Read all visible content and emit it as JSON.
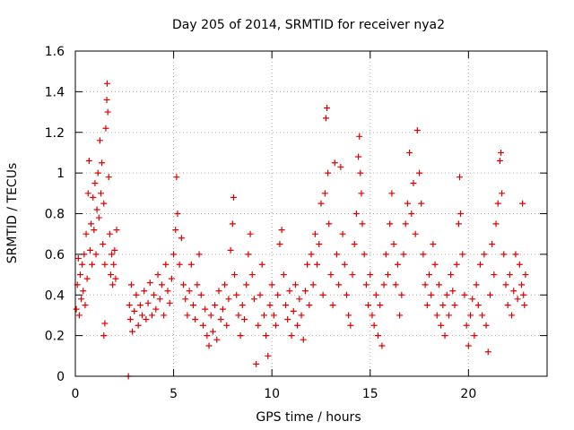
{
  "chart_data": {
    "type": "scatter",
    "title": "Day 205 of 2014, SRMTID for receiver nya2",
    "xlabel": "GPS time / hours",
    "ylabel": "SRMTID / TECUs",
    "xlim": [
      0,
      24
    ],
    "ylim": [
      0,
      1.6
    ],
    "xticks": [
      0,
      5,
      10,
      15,
      20
    ],
    "yticks": [
      0,
      0.2,
      0.4,
      0.6,
      0.8,
      1,
      1.2,
      1.4,
      1.6
    ],
    "xtick_labels": [
      "0",
      "5",
      "10",
      "15",
      "20"
    ],
    "ytick_labels": [
      "0",
      "0.2",
      "0.4",
      "0.6",
      "0.8",
      "1",
      "1.2",
      "1.4",
      "1.6"
    ],
    "grid": true,
    "legend": "none",
    "marker": "plus",
    "color": "#e00000",
    "series": [
      {
        "name": "SRMTID",
        "points": [
          [
            0.05,
            0.33
          ],
          [
            0.1,
            0.45
          ],
          [
            0.15,
            0.58
          ],
          [
            0.2,
            0.3
          ],
          [
            0.25,
            0.5
          ],
          [
            0.3,
            0.38
          ],
          [
            0.35,
            0.55
          ],
          [
            0.4,
            0.42
          ],
          [
            0.45,
            0.6
          ],
          [
            0.5,
            0.35
          ],
          [
            0.55,
            0.7
          ],
          [
            0.6,
            0.48
          ],
          [
            0.65,
            0.9
          ],
          [
            0.7,
            1.06
          ],
          [
            0.75,
            0.62
          ],
          [
            0.8,
            0.75
          ],
          [
            0.85,
            0.55
          ],
          [
            0.9,
            0.88
          ],
          [
            0.95,
            0.72
          ],
          [
            1.0,
            0.95
          ],
          [
            1.05,
            0.6
          ],
          [
            1.1,
            0.82
          ],
          [
            1.15,
            1.0
          ],
          [
            1.2,
            0.78
          ],
          [
            1.25,
            1.16
          ],
          [
            1.3,
            0.9
          ],
          [
            1.35,
            1.05
          ],
          [
            1.4,
            0.65
          ],
          [
            1.45,
            0.85
          ],
          [
            1.5,
            0.55
          ],
          [
            1.55,
            1.22
          ],
          [
            1.6,
            1.36
          ],
          [
            1.62,
            1.44
          ],
          [
            1.65,
            1.3
          ],
          [
            1.7,
            0.98
          ],
          [
            1.75,
            0.7
          ],
          [
            1.8,
            0.5
          ],
          [
            1.85,
            0.6
          ],
          [
            1.9,
            0.45
          ],
          [
            1.95,
            0.55
          ],
          [
            2.0,
            0.62
          ],
          [
            2.05,
            0.48
          ],
          [
            2.1,
            0.72
          ],
          [
            1.45,
            0.2
          ],
          [
            1.5,
            0.26
          ],
          [
            2.7,
            0.0
          ],
          [
            2.75,
            0.35
          ],
          [
            2.8,
            0.28
          ],
          [
            2.85,
            0.45
          ],
          [
            2.9,
            0.22
          ],
          [
            3.0,
            0.32
          ],
          [
            3.1,
            0.4
          ],
          [
            3.2,
            0.25
          ],
          [
            3.3,
            0.35
          ],
          [
            3.4,
            0.3
          ],
          [
            3.5,
            0.42
          ],
          [
            3.6,
            0.28
          ],
          [
            3.7,
            0.36
          ],
          [
            3.8,
            0.46
          ],
          [
            3.9,
            0.3
          ],
          [
            4.0,
            0.4
          ],
          [
            4.1,
            0.33
          ],
          [
            4.2,
            0.5
          ],
          [
            4.3,
            0.38
          ],
          [
            4.4,
            0.45
          ],
          [
            4.5,
            0.3
          ],
          [
            4.6,
            0.55
          ],
          [
            4.7,
            0.42
          ],
          [
            4.8,
            0.36
          ],
          [
            4.9,
            0.48
          ],
          [
            5.0,
            0.6
          ],
          [
            5.1,
            0.72
          ],
          [
            5.15,
            0.98
          ],
          [
            5.2,
            0.8
          ],
          [
            5.3,
            0.55
          ],
          [
            5.4,
            0.68
          ],
          [
            5.5,
            0.45
          ],
          [
            5.6,
            0.38
          ],
          [
            5.7,
            0.3
          ],
          [
            5.8,
            0.42
          ],
          [
            5.9,
            0.55
          ],
          [
            6.0,
            0.35
          ],
          [
            6.1,
            0.28
          ],
          [
            6.2,
            0.45
          ],
          [
            6.3,
            0.6
          ],
          [
            6.4,
            0.4
          ],
          [
            6.5,
            0.25
          ],
          [
            6.6,
            0.33
          ],
          [
            6.7,
            0.2
          ],
          [
            6.8,
            0.15
          ],
          [
            6.9,
            0.3
          ],
          [
            7.0,
            0.22
          ],
          [
            7.1,
            0.35
          ],
          [
            7.2,
            0.18
          ],
          [
            7.3,
            0.42
          ],
          [
            7.4,
            0.28
          ],
          [
            7.5,
            0.33
          ],
          [
            7.6,
            0.45
          ],
          [
            7.7,
            0.25
          ],
          [
            7.8,
            0.38
          ],
          [
            7.9,
            0.62
          ],
          [
            8.0,
            0.75
          ],
          [
            8.05,
            0.88
          ],
          [
            8.1,
            0.5
          ],
          [
            8.2,
            0.4
          ],
          [
            8.3,
            0.3
          ],
          [
            8.4,
            0.2
          ],
          [
            8.5,
            0.35
          ],
          [
            8.6,
            0.28
          ],
          [
            8.7,
            0.45
          ],
          [
            8.8,
            0.6
          ],
          [
            8.9,
            0.7
          ],
          [
            9.0,
            0.5
          ],
          [
            9.1,
            0.38
          ],
          [
            9.2,
            0.06
          ],
          [
            9.3,
            0.25
          ],
          [
            9.4,
            0.4
          ],
          [
            9.5,
            0.55
          ],
          [
            9.6,
            0.3
          ],
          [
            9.7,
            0.2
          ],
          [
            9.8,
            0.1
          ],
          [
            9.9,
            0.35
          ],
          [
            10.0,
            0.45
          ],
          [
            10.1,
            0.3
          ],
          [
            10.2,
            0.25
          ],
          [
            10.3,
            0.4
          ],
          [
            10.4,
            0.65
          ],
          [
            10.5,
            0.72
          ],
          [
            10.6,
            0.5
          ],
          [
            10.7,
            0.35
          ],
          [
            10.8,
            0.28
          ],
          [
            10.9,
            0.42
          ],
          [
            11.0,
            0.2
          ],
          [
            11.1,
            0.32
          ],
          [
            11.2,
            0.45
          ],
          [
            11.3,
            0.25
          ],
          [
            11.4,
            0.38
          ],
          [
            11.5,
            0.3
          ],
          [
            11.6,
            0.18
          ],
          [
            11.7,
            0.42
          ],
          [
            11.8,
            0.55
          ],
          [
            11.9,
            0.35
          ],
          [
            12.0,
            0.6
          ],
          [
            12.1,
            0.45
          ],
          [
            12.2,
            0.7
          ],
          [
            12.3,
            0.55
          ],
          [
            12.4,
            0.65
          ],
          [
            12.5,
            0.85
          ],
          [
            12.6,
            0.4
          ],
          [
            12.7,
            0.9
          ],
          [
            12.75,
            1.27
          ],
          [
            12.8,
            1.32
          ],
          [
            12.85,
            1.0
          ],
          [
            12.9,
            0.75
          ],
          [
            13.0,
            0.5
          ],
          [
            13.1,
            0.35
          ],
          [
            13.2,
            1.05
          ],
          [
            13.3,
            0.6
          ],
          [
            13.4,
            0.45
          ],
          [
            13.5,
            1.03
          ],
          [
            13.6,
            0.7
          ],
          [
            13.7,
            0.55
          ],
          [
            13.8,
            0.4
          ],
          [
            13.9,
            0.3
          ],
          [
            14.0,
            0.25
          ],
          [
            14.1,
            0.5
          ],
          [
            14.2,
            0.65
          ],
          [
            14.3,
            0.8
          ],
          [
            14.4,
            1.08
          ],
          [
            14.45,
            1.18
          ],
          [
            14.5,
            1.0
          ],
          [
            14.55,
            0.9
          ],
          [
            14.6,
            0.75
          ],
          [
            14.7,
            0.6
          ],
          [
            14.8,
            0.45
          ],
          [
            14.9,
            0.35
          ],
          [
            15.0,
            0.5
          ],
          [
            15.1,
            0.3
          ],
          [
            15.2,
            0.25
          ],
          [
            15.3,
            0.4
          ],
          [
            15.4,
            0.2
          ],
          [
            15.5,
            0.35
          ],
          [
            15.6,
            0.15
          ],
          [
            15.7,
            0.45
          ],
          [
            15.8,
            0.6
          ],
          [
            15.9,
            0.5
          ],
          [
            16.0,
            0.75
          ],
          [
            16.1,
            0.9
          ],
          [
            16.2,
            0.65
          ],
          [
            16.3,
            0.45
          ],
          [
            16.4,
            0.55
          ],
          [
            16.5,
            0.3
          ],
          [
            16.6,
            0.4
          ],
          [
            16.7,
            0.6
          ],
          [
            16.8,
            0.75
          ],
          [
            16.9,
            0.85
          ],
          [
            17.0,
            1.1
          ],
          [
            17.1,
            0.8
          ],
          [
            17.2,
            0.95
          ],
          [
            17.3,
            0.7
          ],
          [
            17.4,
            1.21
          ],
          [
            17.5,
            1.0
          ],
          [
            17.6,
            0.85
          ],
          [
            17.7,
            0.6
          ],
          [
            17.8,
            0.45
          ],
          [
            17.9,
            0.35
          ],
          [
            18.0,
            0.5
          ],
          [
            18.1,
            0.4
          ],
          [
            18.2,
            0.65
          ],
          [
            18.3,
            0.55
          ],
          [
            18.4,
            0.3
          ],
          [
            18.5,
            0.45
          ],
          [
            18.6,
            0.25
          ],
          [
            18.7,
            0.35
          ],
          [
            18.8,
            0.2
          ],
          [
            18.9,
            0.4
          ],
          [
            19.0,
            0.3
          ],
          [
            19.1,
            0.5
          ],
          [
            19.2,
            0.42
          ],
          [
            19.3,
            0.35
          ],
          [
            19.4,
            0.55
          ],
          [
            19.5,
            0.75
          ],
          [
            19.55,
            0.98
          ],
          [
            19.6,
            0.8
          ],
          [
            19.7,
            0.6
          ],
          [
            19.8,
            0.4
          ],
          [
            19.9,
            0.25
          ],
          [
            20.0,
            0.15
          ],
          [
            20.1,
            0.3
          ],
          [
            20.2,
            0.38
          ],
          [
            20.3,
            0.2
          ],
          [
            20.4,
            0.45
          ],
          [
            20.5,
            0.35
          ],
          [
            20.6,
            0.55
          ],
          [
            20.7,
            0.3
          ],
          [
            20.8,
            0.6
          ],
          [
            20.9,
            0.25
          ],
          [
            21.0,
            0.12
          ],
          [
            21.1,
            0.4
          ],
          [
            21.2,
            0.65
          ],
          [
            21.3,
            0.5
          ],
          [
            21.4,
            0.75
          ],
          [
            21.5,
            0.85
          ],
          [
            21.6,
            1.06
          ],
          [
            21.65,
            1.1
          ],
          [
            21.7,
            0.9
          ],
          [
            21.8,
            0.6
          ],
          [
            21.9,
            0.45
          ],
          [
            22.0,
            0.35
          ],
          [
            22.1,
            0.5
          ],
          [
            22.2,
            0.3
          ],
          [
            22.3,
            0.42
          ],
          [
            22.4,
            0.6
          ],
          [
            22.5,
            0.38
          ],
          [
            22.6,
            0.55
          ],
          [
            22.7,
            0.45
          ],
          [
            22.75,
            0.85
          ],
          [
            22.8,
            0.4
          ],
          [
            22.85,
            0.35
          ],
          [
            22.9,
            0.5
          ]
        ]
      }
    ]
  }
}
